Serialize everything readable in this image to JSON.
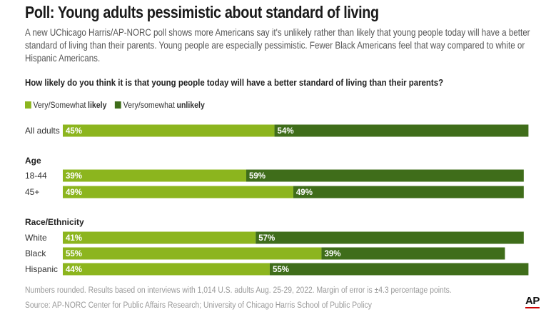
{
  "title": "Poll: Young adults pessimistic about standard of living",
  "subtitle": "A new UChicago Harris/AP-NORC poll shows more Americans say it's unlikely rather than likely that young people today will have a better standard of living than their parents. Young people are especially pessimistic. Fewer Black Americans feel that way compared to white or Hispanic Americans.",
  "question": "How likely do you think it is that young people today will have a better standard of living than their parents?",
  "legend": {
    "likely": {
      "prefix": "Very/Somewhat",
      "strong": "likely",
      "color": "#8cb51e"
    },
    "unlikely": {
      "prefix": "Very/somewhat",
      "strong": "unlikely",
      "color": "#3f6d1a"
    }
  },
  "chart_data": {
    "type": "bar",
    "orientation": "horizontal",
    "stacked": true,
    "categories": [
      "All adults",
      "18-44",
      "45+",
      "White",
      "Black",
      "Hispanic"
    ],
    "groups": [
      {
        "label": "",
        "rows": [
          0
        ]
      },
      {
        "label": "Age",
        "rows": [
          1,
          2
        ]
      },
      {
        "label": "Race/Ethnicity",
        "rows": [
          3,
          4,
          5
        ]
      }
    ],
    "series": [
      {
        "name": "Very/Somewhat likely",
        "color": "#8cb51e",
        "values": [
          45,
          39,
          49,
          41,
          55,
          44
        ]
      },
      {
        "name": "Very/somewhat unlikely",
        "color": "#3f6d1a",
        "values": [
          54,
          59,
          49,
          57,
          39,
          55
        ]
      }
    ],
    "value_suffix": "%",
    "xlim": [
      0,
      100
    ]
  },
  "notes": {
    "numbers": "Numbers rounded. Results based on interviews with 1,014 U.S. adults Aug. 25-29, 2022. Margin of error is ±4.3 percentage points.",
    "source": "Source: AP-NORC Center for Public Affairs Research; University of Chicago Harris School of Public Policy"
  },
  "logo": "AP"
}
